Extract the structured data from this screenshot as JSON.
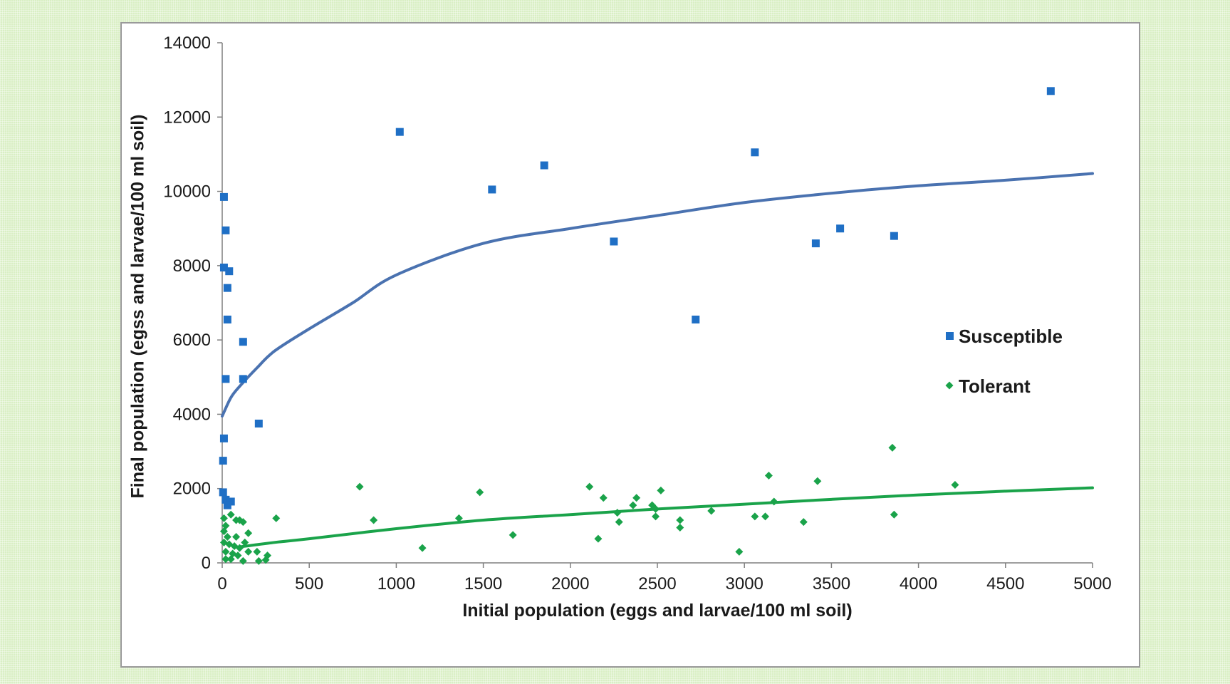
{
  "chart_data": {
    "type": "scatter",
    "title": "",
    "xlabel": "Initial population (eggs and larvae/100 ml soil)",
    "ylabel": "Final population (egss and larvae/100 ml soil)",
    "xlim": [
      0,
      5000
    ],
    "ylim": [
      0,
      14000
    ],
    "x_ticks": [
      0,
      500,
      1000,
      1500,
      2000,
      2500,
      3000,
      3500,
      4000,
      4500,
      5000
    ],
    "y_ticks": [
      0,
      2000,
      4000,
      6000,
      8000,
      10000,
      12000,
      14000
    ],
    "grid": false,
    "legend_position": "right-middle",
    "series": [
      {
        "name": "Susceptible",
        "marker": "square",
        "color": "#1f6fc5",
        "trend_color": "#4a72b0",
        "points": [
          [
            10,
            9850
          ],
          [
            20,
            8950
          ],
          [
            10,
            7950
          ],
          [
            40,
            7850
          ],
          [
            30,
            7400
          ],
          [
            30,
            6550
          ],
          [
            120,
            5950
          ],
          [
            120,
            4950
          ],
          [
            20,
            4950
          ],
          [
            210,
            3750
          ],
          [
            10,
            3350
          ],
          [
            5,
            2750
          ],
          [
            5,
            1900
          ],
          [
            20,
            1700
          ],
          [
            50,
            1650
          ],
          [
            30,
            1550
          ],
          [
            1020,
            11600
          ],
          [
            1550,
            10050
          ],
          [
            1850,
            10700
          ],
          [
            2250,
            8650
          ],
          [
            2720,
            6550
          ],
          [
            3060,
            11050
          ],
          [
            3410,
            8600
          ],
          [
            3550,
            9000
          ],
          [
            3860,
            8800
          ],
          [
            4760,
            12700
          ]
        ],
        "trend": [
          [
            0,
            3950
          ],
          [
            50,
            4450
          ],
          [
            100,
            4750
          ],
          [
            200,
            5250
          ],
          [
            300,
            5700
          ],
          [
            500,
            6300
          ],
          [
            750,
            7000
          ],
          [
            1000,
            7750
          ],
          [
            1500,
            8600
          ],
          [
            2000,
            9000
          ],
          [
            2500,
            9350
          ],
          [
            3000,
            9700
          ],
          [
            3500,
            9950
          ],
          [
            4000,
            10150
          ],
          [
            4500,
            10300
          ],
          [
            5000,
            10480
          ]
        ]
      },
      {
        "name": "Tolerant",
        "marker": "diamond",
        "color": "#1aa34a",
        "trend_color": "#1aa34a",
        "points": [
          [
            10,
            1200
          ],
          [
            20,
            1000
          ],
          [
            50,
            1300
          ],
          [
            80,
            1150
          ],
          [
            100,
            1150
          ],
          [
            120,
            1100
          ],
          [
            10,
            850
          ],
          [
            30,
            700
          ],
          [
            80,
            700
          ],
          [
            150,
            800
          ],
          [
            10,
            550
          ],
          [
            40,
            500
          ],
          [
            70,
            450
          ],
          [
            100,
            400
          ],
          [
            130,
            550
          ],
          [
            20,
            300
          ],
          [
            60,
            250
          ],
          [
            90,
            200
          ],
          [
            150,
            300
          ],
          [
            20,
            100
          ],
          [
            50,
            100
          ],
          [
            120,
            50
          ],
          [
            200,
            300
          ],
          [
            260,
            200
          ],
          [
            210,
            50
          ],
          [
            250,
            80
          ],
          [
            310,
            1200
          ],
          [
            790,
            2050
          ],
          [
            870,
            1150
          ],
          [
            1150,
            400
          ],
          [
            1360,
            1200
          ],
          [
            1480,
            1900
          ],
          [
            1670,
            750
          ],
          [
            2110,
            2050
          ],
          [
            2160,
            650
          ],
          [
            2190,
            1750
          ],
          [
            2270,
            1350
          ],
          [
            2280,
            1100
          ],
          [
            2360,
            1550
          ],
          [
            2380,
            1750
          ],
          [
            2470,
            1550
          ],
          [
            2490,
            1450
          ],
          [
            2490,
            1250
          ],
          [
            2520,
            1950
          ],
          [
            2630,
            1150
          ],
          [
            2630,
            950
          ],
          [
            2810,
            1400
          ],
          [
            2970,
            300
          ],
          [
            3060,
            1250
          ],
          [
            3120,
            1250
          ],
          [
            3140,
            2350
          ],
          [
            3170,
            1650
          ],
          [
            3340,
            1100
          ],
          [
            3420,
            2200
          ],
          [
            3850,
            3100
          ],
          [
            3860,
            1300
          ],
          [
            4210,
            2100
          ]
        ],
        "trend": [
          [
            100,
            430
          ],
          [
            300,
            550
          ],
          [
            500,
            650
          ],
          [
            1000,
            920
          ],
          [
            1500,
            1150
          ],
          [
            2000,
            1300
          ],
          [
            2500,
            1450
          ],
          [
            3000,
            1580
          ],
          [
            3500,
            1710
          ],
          [
            4000,
            1830
          ],
          [
            4500,
            1930
          ],
          [
            5000,
            2020
          ]
        ]
      }
    ]
  }
}
